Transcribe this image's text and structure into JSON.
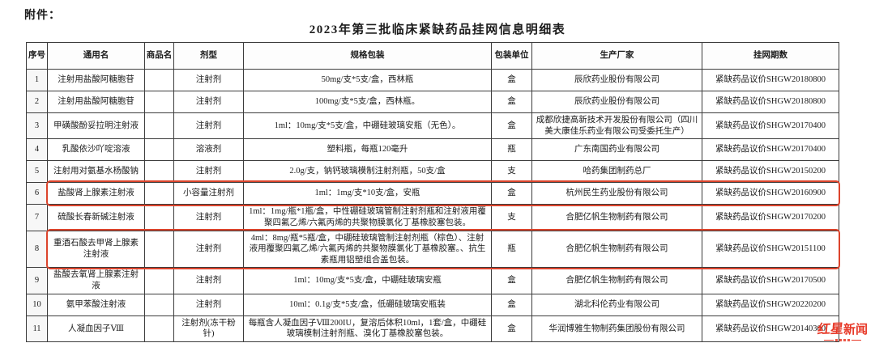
{
  "page": {
    "attachment_label": "附件：",
    "title": "2023年第三批临床紧缺药品挂网信息明细表"
  },
  "table": {
    "headers": [
      "序号",
      "通用名",
      "商品名",
      "剂型",
      "规格包装",
      "包装单位",
      "生产厂家",
      "挂网期数"
    ],
    "rows": [
      {
        "no": "1",
        "generic_name": "注射用盐酸阿糖胞苷",
        "brand_name": "",
        "dosage_form": "注射剂",
        "spec": "50mg/支*5支/盒，西林瓶",
        "unit": "盒",
        "manufacturer": "辰欣药业股份有限公司",
        "listing_period": "紧缺药品议价SHGW20180800",
        "highlighted": false
      },
      {
        "no": "2",
        "generic_name": "注射用盐酸阿糖胞苷",
        "brand_name": "",
        "dosage_form": "注射剂",
        "spec": "100mg/支*5支/盒，西林瓶。",
        "unit": "盒",
        "manufacturer": "辰欣药业股份有限公司",
        "listing_period": "紧缺药品议价SHGW20180800",
        "highlighted": false
      },
      {
        "no": "3",
        "generic_name": "甲磺酸酚妥拉明注射液",
        "brand_name": "",
        "dosage_form": "注射剂",
        "spec": "1ml：10mg/支*5支/盒，中硼硅玻璃安瓶（无色）。",
        "unit": "盒",
        "manufacturer": "成都欣捷高新技术开发股份有限公司（四川美大康佳乐药业有限公司受委托生产）",
        "listing_period": "紧缺药品议价SHGW20170400",
        "highlighted": false
      },
      {
        "no": "4",
        "generic_name": "乳酸依沙吖啶溶液",
        "brand_name": "",
        "dosage_form": "溶液剂",
        "spec": "塑料瓶，每瓶120毫升",
        "unit": "瓶",
        "manufacturer": "广东南国药业有限公司",
        "listing_period": "紧缺药品议价SHGW20170400",
        "highlighted": false
      },
      {
        "no": "5",
        "generic_name": "注射用对氨基水杨酸钠",
        "brand_name": "",
        "dosage_form": "注射剂",
        "spec": "2.0g/支，钠钙玻璃模制注射剂瓶，50支/盒",
        "unit": "支",
        "manufacturer": "哈药集团制药总厂",
        "listing_period": "紧缺药品议价SHGW20150200",
        "highlighted": false
      },
      {
        "no": "6",
        "generic_name": "盐酸肾上腺素注射液",
        "brand_name": "",
        "dosage_form": "小容量注射剂",
        "spec": "1ml：1mg/支*10支/盒，安瓶",
        "unit": "盒",
        "manufacturer": "杭州民生药业股份有限公司",
        "listing_period": "紧缺药品议价SHGW20160900",
        "highlighted": true
      },
      {
        "no": "7",
        "generic_name": "硫酸长春新碱注射液",
        "brand_name": "",
        "dosage_form": "注射剂",
        "spec": "1ml：1mg/瓶*1瓶/盒，中性硼硅玻璃管制注射剂瓶和注射液用覆聚四氟乙烯/六氟丙烯的共聚物膜氯化丁基橡胶塞包装。",
        "unit": "支",
        "manufacturer": "合肥亿帆生物制药有限公司",
        "listing_period": "紧缺药品议价SHGW20170200",
        "highlighted": false
      },
      {
        "no": "8",
        "generic_name": "重酒石酸去甲肾上腺素注射液",
        "brand_name": "",
        "dosage_form": "注射剂",
        "spec": "4ml：8mg/瓶*5瓶/盒，中硼硅玻璃管制注射剂瓶（棕色）、注射液用覆聚四氟乙烯/六氟丙烯的共聚物膜氯化丁基橡胶塞。、抗生素瓶用铝塑组合盖包装。",
        "unit": "瓶",
        "manufacturer": "合肥亿帆生物制药有限公司",
        "listing_period": "紧缺药品议价SHGW20151100",
        "highlighted": true
      },
      {
        "no": "9",
        "generic_name": "盐酸去氧肾上腺素注射液",
        "brand_name": "",
        "dosage_form": "注射剂",
        "spec": "1ml：10mg/支*5支/盒，中硼硅玻璃安瓶",
        "unit": "盒",
        "manufacturer": "合肥亿帆生物制药有限公司",
        "listing_period": "紧缺药品议价SHGW20170500",
        "highlighted": false
      },
      {
        "no": "10",
        "generic_name": "氨甲苯酸注射液",
        "brand_name": "",
        "dosage_form": "注射剂",
        "spec": "10ml：0.1g/支*5支/盒，低硼硅玻璃安瓶装",
        "unit": "盒",
        "manufacturer": "湖北科伦药业有限公司",
        "listing_period": "紧缺药品议价SHGW20220200",
        "highlighted": false
      },
      {
        "no": "11",
        "generic_name": "人凝血因子Ⅷ",
        "brand_name": "",
        "dosage_form": "注射剂(冻干粉针)",
        "spec": "每瓶含人凝血因子Ⅷ200IU，复溶后体积10ml，1套/盒，中硼硅玻璃模制注射剂瓶、溴化丁基橡胶塞包装。",
        "unit": "盒",
        "manufacturer": "华润博雅生物制药集团股份有限公司",
        "listing_period": "紧缺药品议价SHGW20140300",
        "highlighted": false
      }
    ]
  },
  "watermark": {
    "logo_part1": "红星",
    "logo_part2": "新闻"
  },
  "colors": {
    "highlight_border": "#dc442c",
    "logo_red": "#e73827",
    "table_border": "#3c3c3c"
  }
}
